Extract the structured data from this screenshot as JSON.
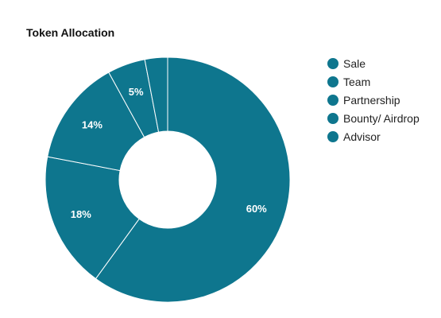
{
  "chart_data": {
    "type": "pie",
    "title": "Token Allocation",
    "categories": [
      "Sale",
      "Team",
      "Partnership",
      "Bounty/ Airdrop",
      "Advisor"
    ],
    "values": [
      60,
      18,
      14,
      5,
      3
    ],
    "data_labels": [
      "60%",
      "18%",
      "14%",
      "5%",
      ""
    ],
    "donut": true,
    "color": "#0e768e",
    "separator_color": "#ffffff",
    "legend_position": "right"
  }
}
